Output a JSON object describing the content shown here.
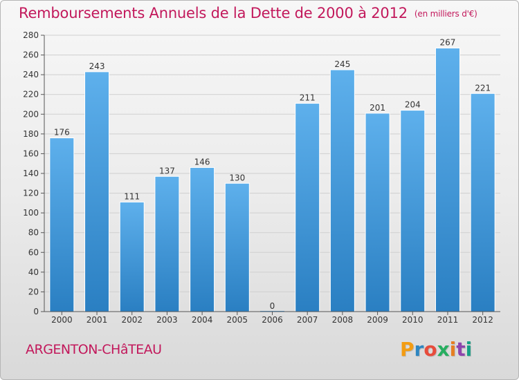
{
  "chart_data": {
    "type": "bar",
    "title": "Remboursements Annuels de la Dette de 2000 à 2012",
    "unit_note": "(en milliers d'€)",
    "categories": [
      "2000",
      "2001",
      "2002",
      "2003",
      "2004",
      "2005",
      "2006",
      "2007",
      "2008",
      "2009",
      "2010",
      "2011",
      "2012"
    ],
    "values": [
      176,
      243,
      111,
      137,
      146,
      130,
      0,
      211,
      245,
      201,
      204,
      267,
      221
    ],
    "value_labels": [
      "176",
      "243",
      "111",
      "137",
      "146",
      "130",
      "0",
      "211",
      "245",
      "201",
      "204",
      "267",
      "221"
    ],
    "ylim": [
      0,
      280
    ],
    "yticks": [
      0,
      20,
      40,
      60,
      80,
      100,
      120,
      140,
      160,
      180,
      200,
      220,
      240,
      260,
      280
    ],
    "ytick_labels": [
      "0",
      "20",
      "40",
      "60",
      "80",
      "100",
      "120",
      "140",
      "160",
      "180",
      "200",
      "220",
      "240",
      "260",
      "280"
    ],
    "xlabel": "",
    "ylabel": "",
    "grid": true,
    "bar_color": "#4a9fe0",
    "grid_color": "#cfcfcf"
  },
  "footer": {
    "city": "ARGENTON-CHâTEAU",
    "brand_letters": [
      "P",
      "r",
      "o",
      "x",
      "i",
      "t",
      "i"
    ],
    "brand_colors": [
      "#f39c12",
      "#2e86c1",
      "#e74c3c",
      "#27ae60",
      "#e67e22",
      "#8e44ad",
      "#16a085"
    ],
    "title_color": "#c2185b"
  }
}
